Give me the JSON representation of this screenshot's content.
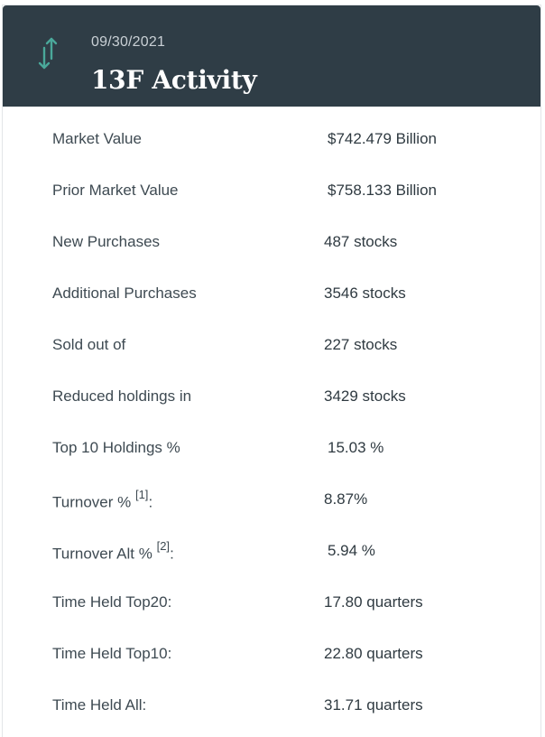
{
  "header": {
    "icon": "up-down-arrows-icon",
    "date": "09/30/2021",
    "title": "13F Activity"
  },
  "colors": {
    "header_bg": "#2f3d46",
    "icon_accent": "#4aa89a",
    "text": "#3e4a52"
  },
  "rows": [
    {
      "label": "Market Value",
      "sup": "",
      "suffix": "",
      "value": "$742.479 Billion"
    },
    {
      "label": "Prior Market Value",
      "sup": "",
      "suffix": "",
      "value": "$758.133 Billion"
    },
    {
      "label": "New Purchases",
      "sup": "",
      "suffix": "",
      "value": "487 stocks"
    },
    {
      "label": "Additional Purchases",
      "sup": "",
      "suffix": "",
      "value": "3546 stocks"
    },
    {
      "label": "Sold out of",
      "sup": "",
      "suffix": "",
      "value": "227 stocks"
    },
    {
      "label": "Reduced holdings in",
      "sup": "",
      "suffix": "",
      "value": "3429 stocks"
    },
    {
      "label": "Top 10 Holdings %",
      "sup": "",
      "suffix": "",
      "value": "15.03 %"
    },
    {
      "label": "Turnover % ",
      "sup": "[1]",
      "suffix": ":",
      "value": "8.87%"
    },
    {
      "label": "Turnover Alt % ",
      "sup": "[2]",
      "suffix": ":",
      "value": "5.94 %"
    },
    {
      "label": "Time Held Top20:",
      "sup": "",
      "suffix": "",
      "value": "17.80 quarters"
    },
    {
      "label": "Time Held Top10:",
      "sup": "",
      "suffix": "",
      "value": "22.80 quarters"
    },
    {
      "label": "Time Held All:",
      "sup": "",
      "suffix": "",
      "value": "31.71 quarters"
    }
  ]
}
